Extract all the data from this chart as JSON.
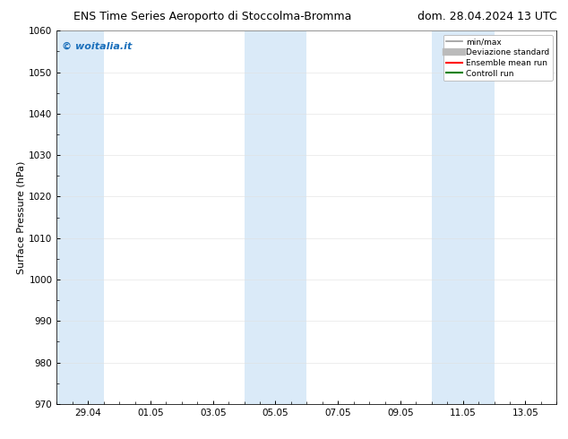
{
  "title_left": "ENS Time Series Aeroporto di Stoccolma-Bromma",
  "title_right": "dom. 28.04.2024 13 UTC",
  "ylabel": "Surface Pressure (hPa)",
  "ylim": [
    970,
    1060
  ],
  "yticks": [
    970,
    980,
    990,
    1000,
    1010,
    1020,
    1030,
    1040,
    1050,
    1060
  ],
  "xtick_labels": [
    "29.04",
    "01.05",
    "03.05",
    "05.05",
    "07.05",
    "09.05",
    "11.05",
    "13.05"
  ],
  "xtick_positions": [
    1,
    3,
    5,
    7,
    9,
    11,
    13,
    15
  ],
  "xlim": [
    0,
    16
  ],
  "shaded_bands": [
    {
      "x_start": 0.0,
      "x_end": 1.5
    },
    {
      "x_start": 6.0,
      "x_end": 8.0
    },
    {
      "x_start": 12.0,
      "x_end": 14.0
    }
  ],
  "shade_color": "#daeaf8",
  "background_color": "#ffffff",
  "watermark_text": "© woitalia.it",
  "watermark_color": "#1a6fbb",
  "legend_items": [
    {
      "label": "min/max",
      "color": "#999999",
      "lw": 1.2,
      "style": "solid"
    },
    {
      "label": "Deviazione standard",
      "color": "#bbbbbb",
      "lw": 6,
      "style": "solid"
    },
    {
      "label": "Ensemble mean run",
      "color": "#ff0000",
      "lw": 1.5,
      "style": "solid"
    },
    {
      "label": "Controll run",
      "color": "#008000",
      "lw": 1.5,
      "style": "solid"
    }
  ],
  "grid_color": "#e0e0e0",
  "tick_direction": "in",
  "title_fontsize": 9,
  "axis_label_fontsize": 8,
  "tick_fontsize": 7.5
}
